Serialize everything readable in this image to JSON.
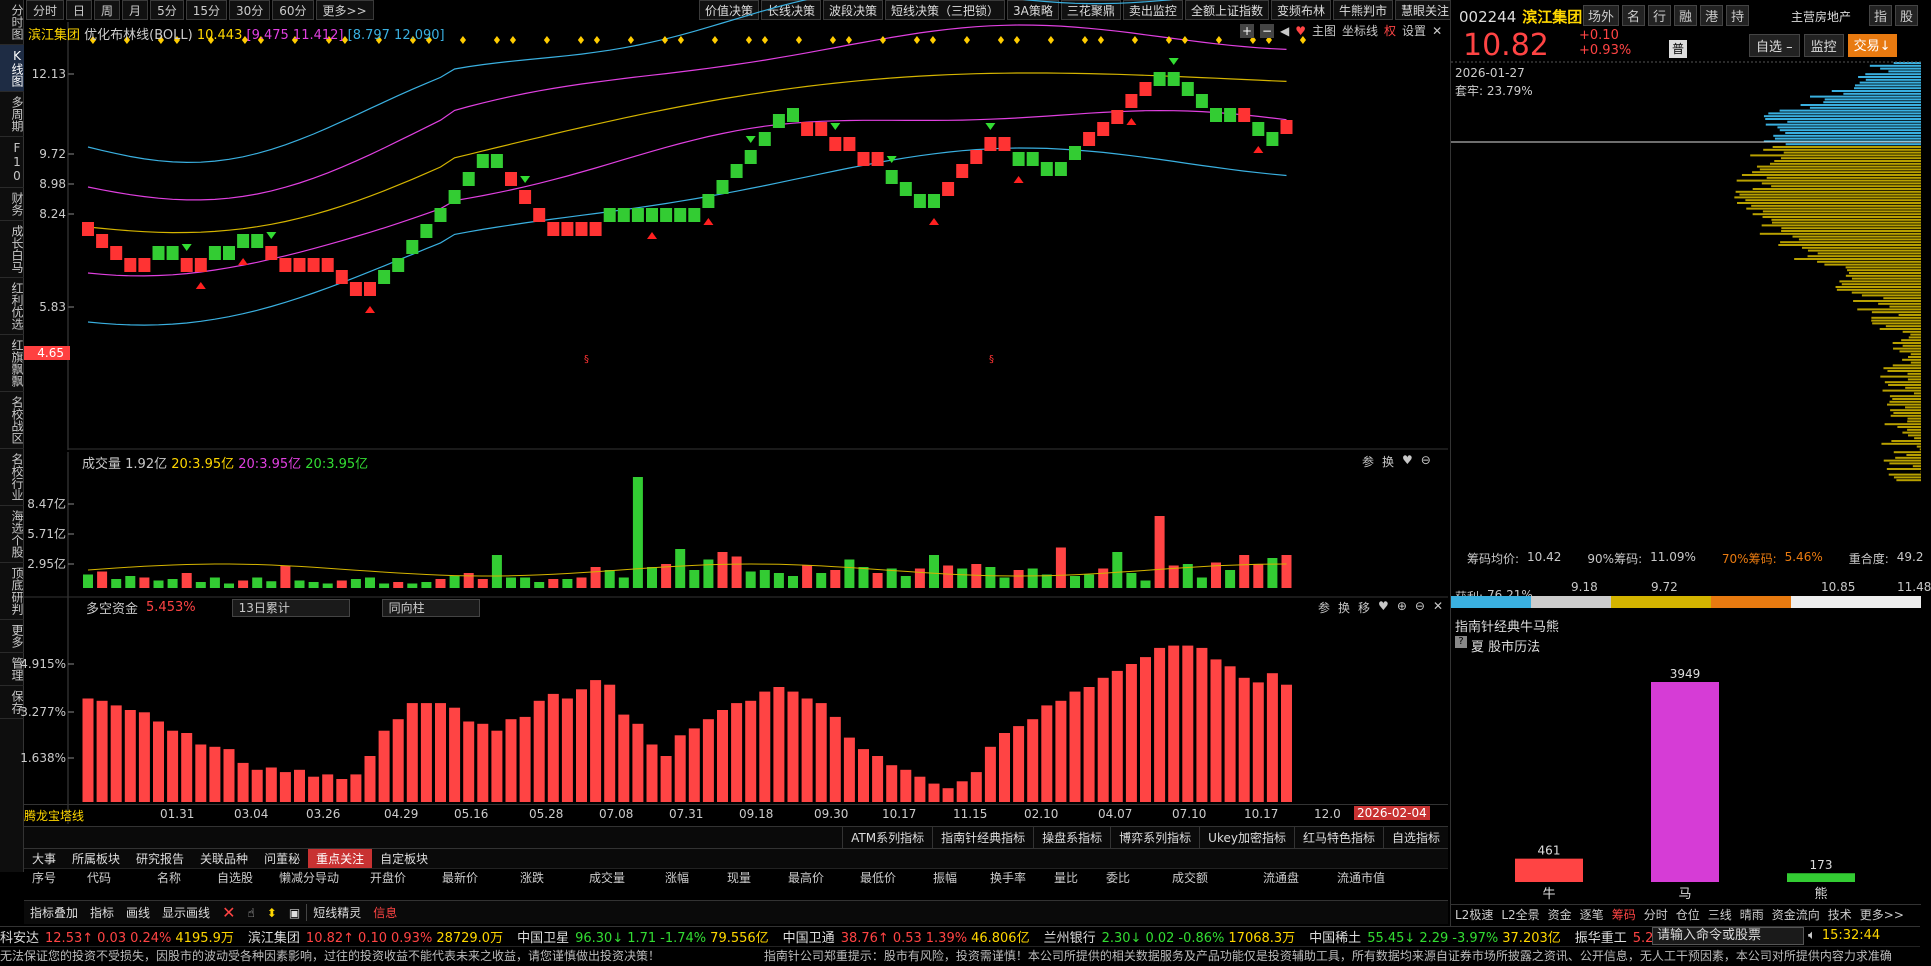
{
  "left_nav": [
    "分时图",
    "K线图",
    "多周期",
    "F10",
    "财务",
    "成长白马",
    "红利优选",
    "红旗飘飘",
    "名校战区",
    "名校行业",
    "海选个股",
    "顶底研判",
    "更多",
    "管理",
    "保存"
  ],
  "left_nav_active": 1,
  "period_tabs": [
    "分时",
    "日",
    "周",
    "月",
    "5分",
    "15分",
    "30分",
    "60分",
    "更多>>"
  ],
  "strategy_tabs": [
    "价值决策",
    "长线决策",
    "波段决策",
    "短线决策（三把锁）",
    "3A策略",
    "三花聚鼎",
    "卖出监控",
    "全额上证指数",
    "变频布林",
    "牛熊判市",
    "慧眼关注"
  ],
  "main_legend": {
    "name": "滨江集团",
    "indicator": "优化布林线(BOLL)",
    "mid": "10.443",
    "range": "[9.475 11.412]",
    "range2": "[8.797 12.090]"
  },
  "chart_toolbar": {
    "main": "主图",
    "coord": "坐标线",
    "quan": "权",
    "settings": "设置"
  },
  "price_axis": [
    "12.13",
    "9.72",
    "8.98",
    "8.24",
    "5.83"
  ],
  "price_low_label": "4.65",
  "vol_legend": {
    "label": "成交量",
    "value": "1.92亿",
    "ma1": "20:3.95亿",
    "ma2": "20:3.95亿",
    "ma3": "20:3.95亿"
  },
  "vol_axis": [
    "8.47亿",
    "5.71亿",
    "2.95亿"
  ],
  "dk_legend": {
    "label": "多空资金",
    "value": "5.453%",
    "sel1": "13日累计",
    "sel2": "同向柱"
  },
  "dk_axis": [
    "4.915%",
    "3.277%",
    "1.638%"
  ],
  "panel_icons": {
    "param": "参",
    "swap": "换",
    "move": "移"
  },
  "date_axis": [
    "01.31",
    "03.04",
    "03.26",
    "04.29",
    "05.16",
    "05.28",
    "07.08",
    "07.31",
    "09.18",
    "09.30",
    "10.17",
    "11.15",
    "02.10",
    "04.07",
    "07.10",
    "10.17",
    "12.0"
  ],
  "date_box": "2026-02-04",
  "dragon": "腾龙宝塔线",
  "indicator_tabs": [
    "ATM系列指标",
    "指南针经典指标",
    "操盘系指标",
    "博弈系列指标",
    "Ukey加密指标",
    "红马特色指标",
    "自选指标"
  ],
  "bottom_tabs": [
    "大事",
    "所属板块",
    "研究报告",
    "关联品种",
    "问董秘",
    "重点关注",
    "自定板块"
  ],
  "bottom_tab_active": 5,
  "table_headers": [
    "序号",
    "代码",
    "名称",
    "自选股",
    "懒减分导动",
    "开盘价",
    "最新价",
    "涨跌",
    "成交量",
    "涨幅",
    "现量",
    "最高价",
    "最低价",
    "振幅",
    "换手率",
    "量比",
    "委比",
    "成交额",
    "流通盘",
    "流通市值"
  ],
  "tools": [
    "指标叠加",
    "指标",
    "画线",
    "显示画线",
    "短线精灵",
    "信息"
  ],
  "ticker": [
    {
      "name": "科安达",
      "price": "12.53",
      "arrow": "↑",
      "chg": "0.03",
      "pct": "0.24%",
      "amt": "4195.9万",
      "dir": "up"
    },
    {
      "name": "滨江集团",
      "price": "10.82",
      "arrow": "↑",
      "chg": "0.10",
      "pct": "0.93%",
      "amt": "28729.0万",
      "dir": "up"
    },
    {
      "name": "中国卫星",
      "price": "96.30",
      "arrow": "↓",
      "chg": "1.71",
      "pct": "-1.74%",
      "amt": "79.556亿",
      "dir": "dn"
    },
    {
      "name": "中国卫通",
      "price": "38.76",
      "arrow": "↑",
      "chg": "0.53",
      "pct": "1.39%",
      "amt": "46.806亿",
      "dir": "up"
    },
    {
      "name": "兰州银行",
      "price": "2.30",
      "arrow": "↓",
      "chg": "0.02",
      "pct": "-0.86%",
      "amt": "17068.3万",
      "dir": "dn"
    },
    {
      "name": "中国稀土",
      "price": "55.45",
      "arrow": "↓",
      "chg": "2.29",
      "pct": "-3.97%",
      "amt": "37.203亿",
      "dir": "dn"
    },
    {
      "name": "振华重工",
      "price": "5.2",
      "arrow": "",
      "chg": "",
      "pct": "",
      "amt": "",
      "dir": "up"
    }
  ],
  "cmd_placeholder": "请输入命令或股票",
  "clock": "15:32:44",
  "disclaimer": "无法保证您的投资不受损失，因股市的波动受各种因素影响，过往的投资收益不能代表未来之收益，请您谨慎做出投资决策！",
  "disclaimer2": "指南针公司郑重提示：股市有风险，投资需谨慎！本公司所提供的相关数据服务及产品功能仅是投资辅助工具，所有数据均来源自证券市场所披露之资讯、公开信息，无人工干预因素，本公司对所提供内容力求准确",
  "stock": {
    "code": "002244",
    "name": "滨江集团",
    "price": "10.82",
    "chg": "+0.10",
    "pct": "+0.93%",
    "sector": "主营房地产"
  },
  "stock_tabs": [
    "场外",
    "名",
    "行",
    "融",
    "港",
    "持"
  ],
  "stock_tabs2": [
    "指",
    "股"
  ],
  "stock_btns": {
    "add": "自选 –",
    "monitor": "监控",
    "trade": "交易↓"
  },
  "chip": {
    "date": "2026-01-27",
    "trap": "套牢: 23.79%",
    "avg_label": "筹码均价:",
    "avg": "10.42",
    "c90_label": "90%筹码:",
    "c90": "11.09%",
    "c70_label": "70%筹码:",
    "c70": "5.46%",
    "overlap_label": "重合度:",
    "overlap": "49.2",
    "profit_label": "获利:",
    "profit": "76.21%",
    "scale": [
      "9.18",
      "9.72",
      "10.85",
      "11.48"
    ]
  },
  "bullbear": {
    "title": "指南针经典牛马熊",
    "sub": "夏 股市历法",
    "values": [
      {
        "label": "牛",
        "value": 461,
        "color": "#ff4444"
      },
      {
        "label": "马",
        "value": 3949,
        "color": "#d63cd6"
      },
      {
        "label": "熊",
        "value": 173,
        "color": "#33cc33"
      }
    ]
  },
  "right_bottom_tabs": [
    "L2极速",
    "L2全景",
    "资金",
    "逐笔",
    "筹码",
    "分时",
    "仓位",
    "三线",
    "晴雨",
    "资金流向",
    "技术",
    "更多>>"
  ],
  "right_bottom_active": 4,
  "colors": {
    "up": "#ff4444",
    "down": "#33cc33",
    "boll_mid": "#d4b400",
    "boll1": "#e040e0",
    "boll2": "#3ab0e0"
  }
}
